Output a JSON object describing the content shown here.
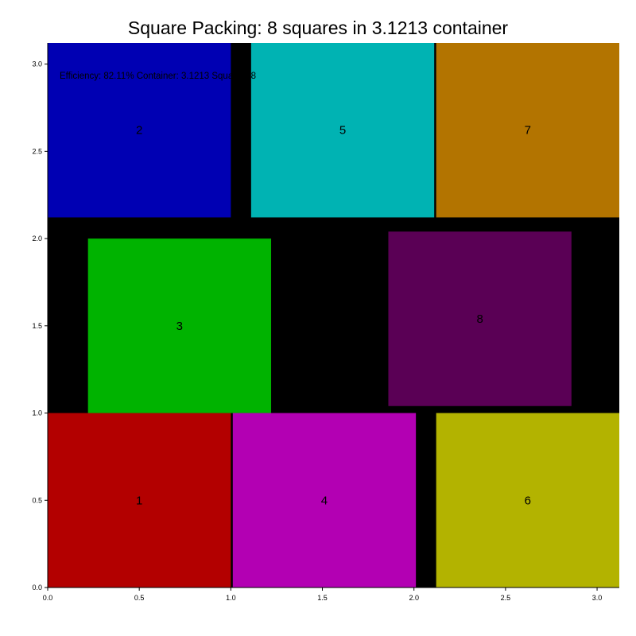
{
  "chart_data": {
    "type": "square-packing",
    "title": "Square Packing: 8 squares in 3.1213 container",
    "container_size": 3.1213,
    "xlim": [
      0,
      3.1213
    ],
    "ylim": [
      0,
      3.1213
    ],
    "x_ticks": [
      "0.0",
      "0.5",
      "1.0",
      "1.5",
      "2.0",
      "2.5",
      "3.0"
    ],
    "y_ticks": [
      "0.0",
      "0.5",
      "1.0",
      "1.5",
      "2.0",
      "2.5",
      "3.0"
    ],
    "background_color": "#000000",
    "annotation": "Efficiency: 82.11% Container: 3.1213 Squares: 8",
    "squares": [
      {
        "label": "1",
        "x": 0.0,
        "y": 0.0,
        "size": 1.0,
        "color": "#b30000"
      },
      {
        "label": "2",
        "x": 0.0,
        "y": 2.1213,
        "size": 1.0,
        "color": "#0000b3"
      },
      {
        "label": "3",
        "x": 0.22,
        "y": 1.0,
        "size": 1.0,
        "color": "#00b300"
      },
      {
        "label": "4",
        "x": 1.0106,
        "y": 0.0,
        "size": 1.0,
        "color": "#b300b3"
      },
      {
        "label": "5",
        "x": 1.1107,
        "y": 2.1213,
        "size": 1.0,
        "color": "#00b3b3"
      },
      {
        "label": "6",
        "x": 2.1213,
        "y": 0.0,
        "size": 1.0,
        "color": "#b3b300"
      },
      {
        "label": "7",
        "x": 2.1213,
        "y": 2.1213,
        "size": 1.0,
        "color": "#b37400"
      },
      {
        "label": "8",
        "x": 1.86,
        "y": 1.04,
        "size": 1.0,
        "color": "#5a0055"
      }
    ]
  }
}
